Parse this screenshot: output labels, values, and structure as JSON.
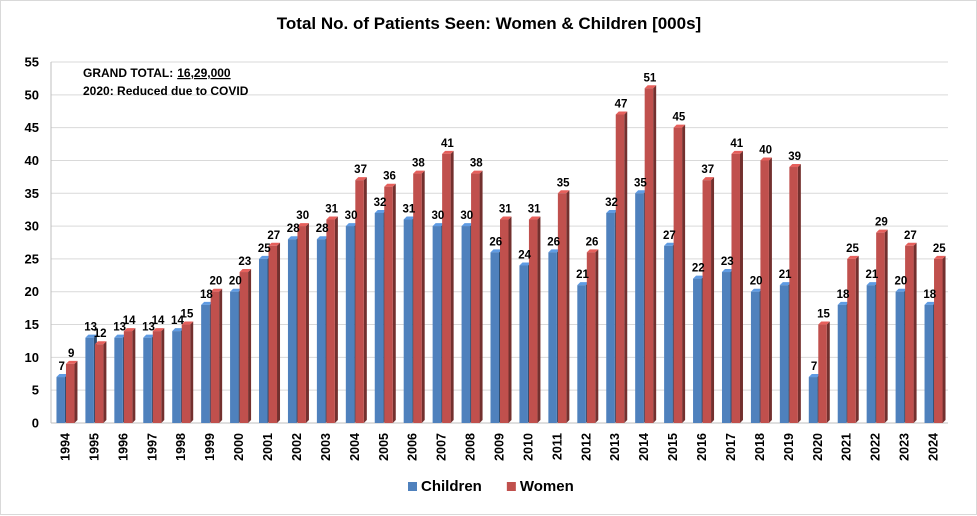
{
  "chart_data": {
    "type": "bar",
    "title": "Total No. of Patients Seen: Women & Children [000s]",
    "xlabel": "",
    "ylabel": "",
    "categories": [
      "1994",
      "1995",
      "1996",
      "1997",
      "1998",
      "1999",
      "2000",
      "2001",
      "2002",
      "2003",
      "2004",
      "2005",
      "2006",
      "2007",
      "2008",
      "2009",
      "2010",
      "2011",
      "2012",
      "2013",
      "2014",
      "2015",
      "2016",
      "2017",
      "2018",
      "2019",
      "2020",
      "2021",
      "2022",
      "2023",
      "2024"
    ],
    "series": [
      {
        "name": "Children",
        "color": "#4F81BD",
        "values": [
          7,
          13,
          13,
          13,
          14,
          18,
          20,
          25,
          28,
          28,
          30,
          32,
          31,
          30,
          30,
          26,
          24,
          26,
          21,
          32,
          35,
          27,
          22,
          23,
          20,
          21,
          7,
          18,
          21,
          20,
          18
        ]
      },
      {
        "name": "Women",
        "color": "#C0504D",
        "values": [
          9,
          12,
          14,
          14,
          15,
          20,
          23,
          27,
          30,
          31,
          37,
          36,
          38,
          41,
          38,
          31,
          31,
          35,
          26,
          47,
          51,
          45,
          37,
          41,
          40,
          39,
          15,
          25,
          29,
          27,
          25
        ]
      }
    ],
    "ylim": [
      0,
      55
    ],
    "yticks": [
      0,
      5,
      10,
      15,
      20,
      25,
      30,
      35,
      40,
      45,
      50,
      55
    ],
    "grid": true,
    "legend": "bottom",
    "data_labels": true,
    "annotations": {
      "grand_total_label": "GRAND TOTAL:",
      "grand_total_value": "16,29,000",
      "covid_note": "2020:  Reduced due to COVID"
    }
  }
}
